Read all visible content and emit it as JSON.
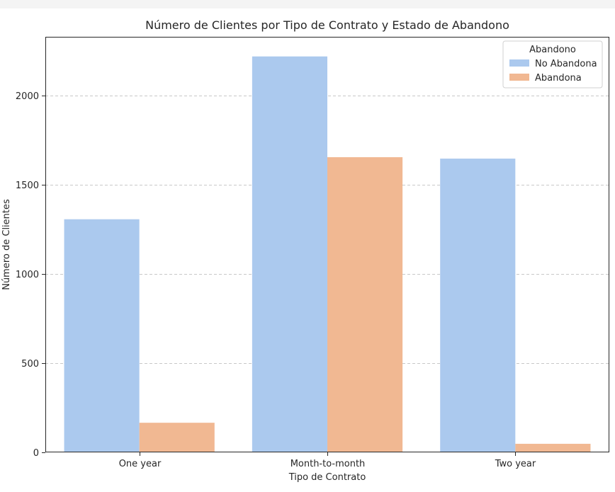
{
  "chart_data": {
    "type": "bar",
    "title": "Número de Clientes por Tipo de Contrato y Estado de Abandono",
    "xlabel": "Tipo de Contrato",
    "ylabel": "Número de Clientes",
    "categories": [
      "One year",
      "Month-to-month",
      "Two year"
    ],
    "series": [
      {
        "name": "No Abandona",
        "values": [
          1307,
          2220,
          1647
        ],
        "color": "#abc9ee"
      },
      {
        "name": "Abandona",
        "values": [
          166,
          1655,
          48
        ],
        "color": "#f1b892"
      }
    ],
    "ylim": [
      0,
      2330
    ],
    "yticks": [
      0,
      500,
      1000,
      1500,
      2000
    ],
    "grid": "horizontal-dashed",
    "legend": {
      "title": "Abandono",
      "placement": "top-right"
    }
  }
}
